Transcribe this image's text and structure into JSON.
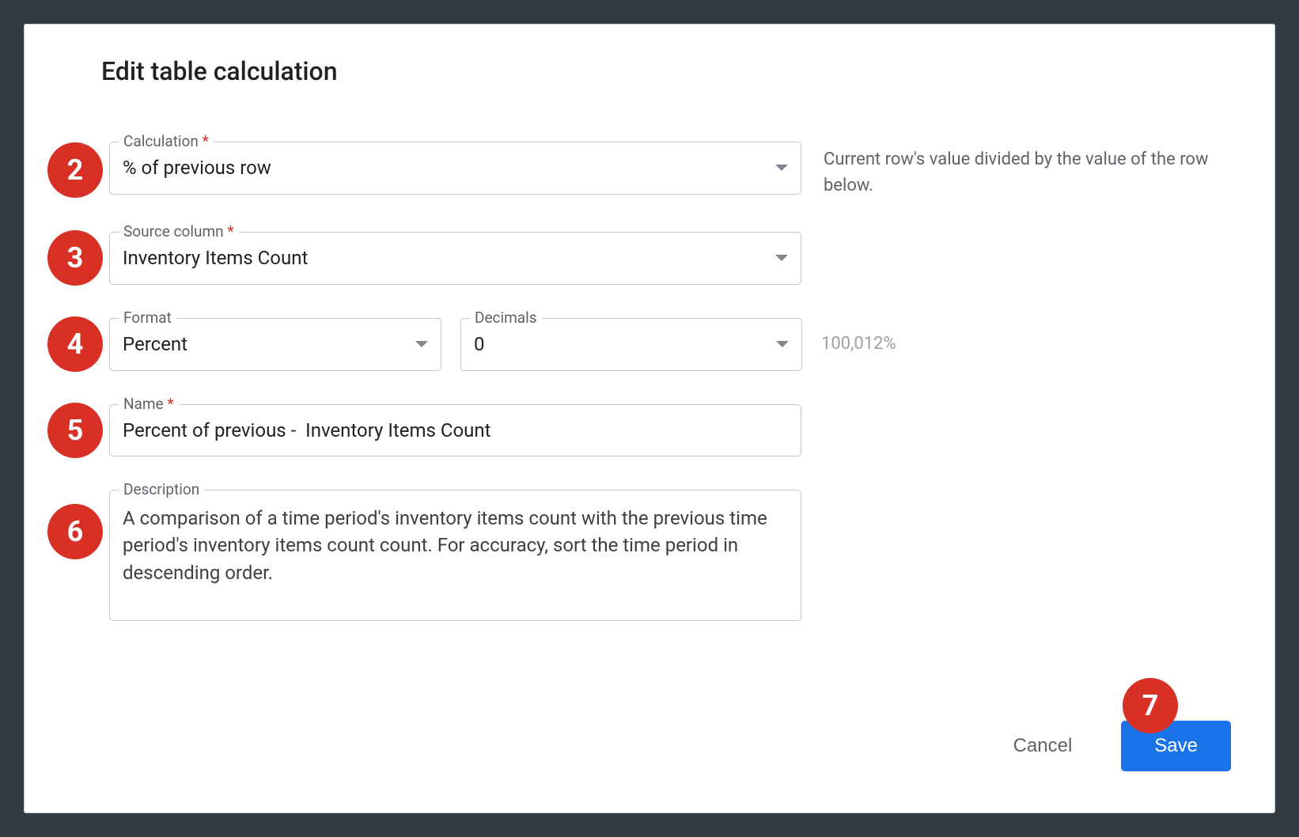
{
  "dialog": {
    "title": "Edit table calculation"
  },
  "badges": {
    "b2": "2",
    "b3": "3",
    "b4": "4",
    "b5": "5",
    "b6": "6",
    "b7": "7"
  },
  "fields": {
    "calculation": {
      "label": "Calculation",
      "required": "*",
      "value": "% of previous row",
      "help": "Current row's value divided by the value of the row below."
    },
    "source_column": {
      "label": "Source column",
      "required": "*",
      "value": "Inventory Items Count"
    },
    "format": {
      "label": "Format",
      "value": "Percent"
    },
    "decimals": {
      "label": "Decimals",
      "value": "0",
      "hint": "100,012%"
    },
    "name": {
      "label": "Name",
      "required": "*",
      "value": "Percent of previous -  Inventory Items Count"
    },
    "description": {
      "label": "Description",
      "value": "A comparison of a time period's inventory items count with the previous time period's inventory items count count. For accuracy, sort the time period in descending order."
    }
  },
  "actions": {
    "cancel": "Cancel",
    "save": "Save"
  },
  "colors": {
    "badge_bg": "#d93025",
    "primary_btn": "#1a73e8",
    "border": "#c4c7c5",
    "text": "#202124",
    "muted": "#5f6368",
    "hint": "#9aa0a6",
    "page_bg": "#333b42"
  }
}
